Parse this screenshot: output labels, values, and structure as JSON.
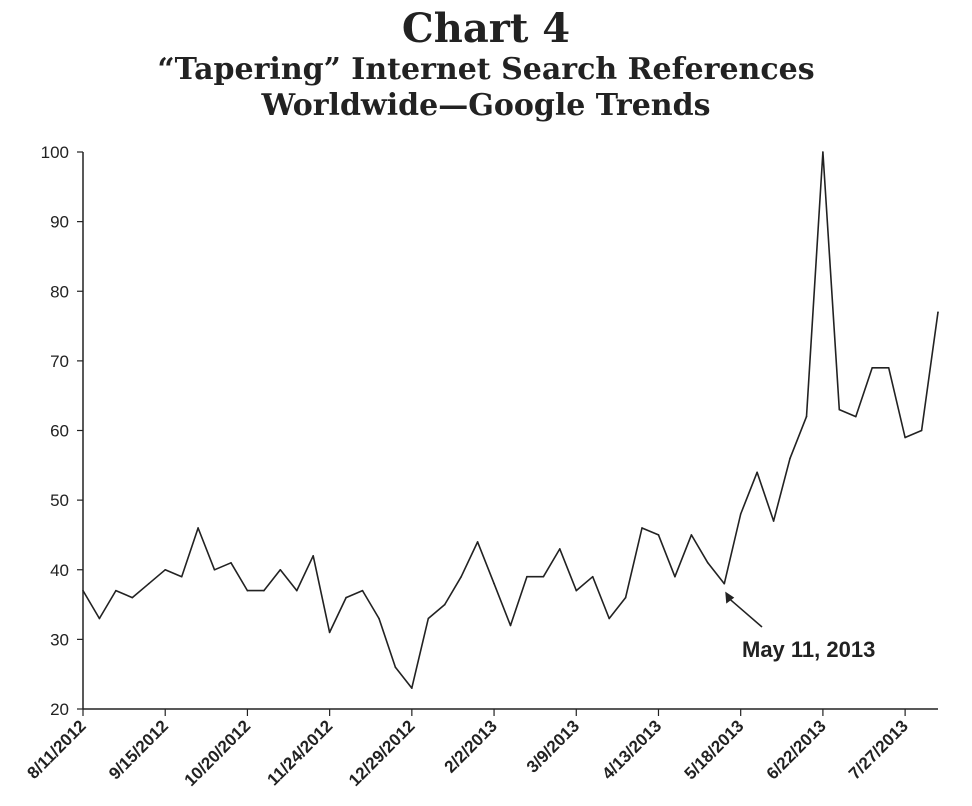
{
  "chart_data": {
    "type": "line",
    "title": "Chart 4",
    "subtitle_line1": "“Tapering” Internet Search References",
    "subtitle_line2": "Worldwide—Google Trends",
    "xlabel": "",
    "ylabel": "",
    "ylim": [
      20,
      100
    ],
    "yticks": [
      20,
      30,
      40,
      50,
      60,
      70,
      80,
      90,
      100
    ],
    "x_tick_labels": [
      "8/11/2012",
      "9/15/2012",
      "10/20/2012",
      "11/24/2012",
      "12/29/2012",
      "2/2/2013",
      "3/9/2013",
      "4/13/2013",
      "5/18/2013",
      "6/22/2013",
      "7/27/2013"
    ],
    "x_tick_every": 5,
    "x": [
      "8/11/2012",
      "8/18/2012",
      "8/25/2012",
      "9/1/2012",
      "9/8/2012",
      "9/15/2012",
      "9/22/2012",
      "9/29/2012",
      "10/6/2012",
      "10/13/2012",
      "10/20/2012",
      "10/27/2012",
      "11/3/2012",
      "11/10/2012",
      "11/17/2012",
      "11/24/2012",
      "12/1/2012",
      "12/8/2012",
      "12/15/2012",
      "12/22/2012",
      "12/29/2012",
      "1/5/2013",
      "1/12/2013",
      "1/19/2013",
      "1/26/2013",
      "2/2/2013",
      "2/9/2013",
      "2/16/2013",
      "2/23/2013",
      "3/2/2013",
      "3/9/2013",
      "3/16/2013",
      "3/23/2013",
      "3/30/2013",
      "4/6/2013",
      "4/13/2013",
      "4/20/2013",
      "4/27/2013",
      "5/4/2013",
      "5/11/2013",
      "5/18/2013",
      "5/25/2013",
      "6/1/2013",
      "6/8/2013",
      "6/15/2013",
      "6/22/2013",
      "6/29/2013",
      "7/6/2013",
      "7/13/2013",
      "7/20/2013",
      "7/27/2013",
      "8/3/2013",
      "8/10/2013"
    ],
    "series": [
      {
        "values": [
          37,
          33,
          37,
          36,
          38,
          40,
          39,
          46,
          40,
          41,
          37,
          37,
          40,
          37,
          42,
          31,
          36,
          37,
          33,
          26,
          23,
          33,
          35,
          39,
          44,
          38,
          32,
          39,
          39,
          43,
          37,
          39,
          33,
          36,
          46,
          45,
          39,
          45,
          41,
          38,
          48,
          54,
          47,
          56,
          62,
          100,
          63,
          62,
          69,
          69,
          59,
          60,
          77
        ]
      }
    ],
    "annotation": {
      "text": "May 11, 2013",
      "x": "5/11/2013",
      "y": 38
    },
    "grid": false,
    "legend": "none"
  }
}
